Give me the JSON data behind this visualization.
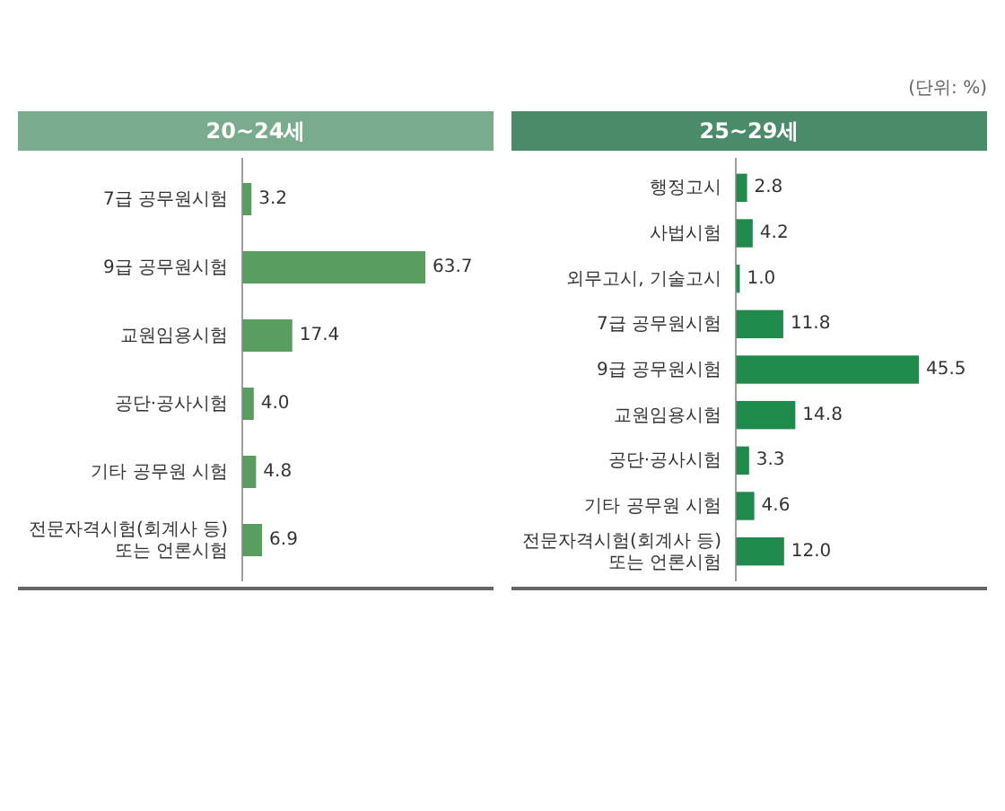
{
  "chart_data": [
    {
      "type": "bar",
      "orientation": "horizontal",
      "title": "20~24세",
      "color": "#5a9e5f",
      "categories": [
        "7급 공무원시험",
        "9급 공무원시험",
        "교원임용시험",
        "공단·공사시험",
        "기타 공무원 시험",
        "전문자격시험(회계사 등) 또는 언론시험"
      ],
      "values": [
        3.2,
        63.7,
        17.4,
        4.0,
        4.8,
        6.9
      ],
      "value_labels": [
        "3.2",
        "63.7",
        "17.4",
        "4.0",
        "4.8",
        "6.9"
      ]
    },
    {
      "type": "bar",
      "orientation": "horizontal",
      "title": "25~29세",
      "color": "#1f8a4c",
      "annotations": [
        "(단위: %)"
      ],
      "categories": [
        "행정고시",
        "사법시험",
        "외무고시, 기술고시",
        "7급 공무원시험",
        "9급 공무원시험",
        "교원임용시험",
        "공단·공사시험",
        "기타 공무원 시험",
        "전문자격시험(회계사 등) 또는 언론시험"
      ],
      "values": [
        2.8,
        4.2,
        1.0,
        11.8,
        45.5,
        14.8,
        3.3,
        4.6,
        12.0
      ],
      "value_labels": [
        "2.8",
        "4.2",
        "1.0",
        "11.8",
        "45.5",
        "14.8",
        "3.3",
        "4.6",
        "12.0"
      ]
    }
  ]
}
